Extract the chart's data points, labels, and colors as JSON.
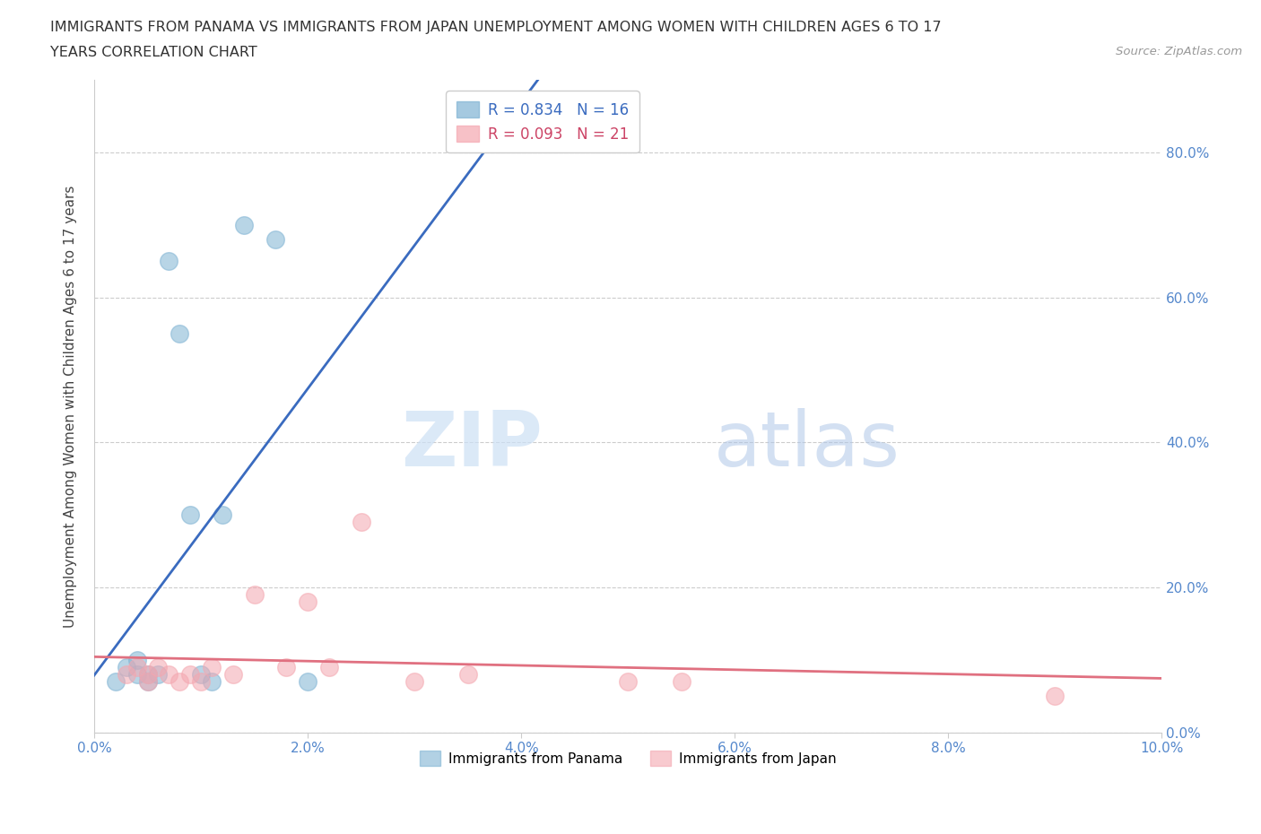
{
  "title_line1": "IMMIGRANTS FROM PANAMA VS IMMIGRANTS FROM JAPAN UNEMPLOYMENT AMONG WOMEN WITH CHILDREN AGES 6 TO 17",
  "title_line2": "YEARS CORRELATION CHART",
  "source": "Source: ZipAtlas.com",
  "ylabel": "Unemployment Among Women with Children Ages 6 to 17 years",
  "xlim": [
    0.0,
    0.1
  ],
  "ylim": [
    0.0,
    0.9
  ],
  "xticks": [
    0.0,
    0.02,
    0.04,
    0.06,
    0.08,
    0.1
  ],
  "yticks": [
    0.0,
    0.2,
    0.4,
    0.6,
    0.8
  ],
  "xtick_labels": [
    "0.0%",
    "2.0%",
    "4.0%",
    "6.0%",
    "8.0%",
    "10.0%"
  ],
  "ytick_labels": [
    "0.0%",
    "20.0%",
    "40.0%",
    "60.0%",
    "80.0%"
  ],
  "panama_color": "#7fb3d3",
  "japan_color": "#f4a7b0",
  "line_panama_color": "#3a6bbf",
  "line_japan_color": "#e07080",
  "legend_panama_label": "Immigrants from Panama",
  "legend_japan_label": "Immigrants from Japan",
  "R_panama": 0.834,
  "N_panama": 16,
  "R_japan": 0.093,
  "N_japan": 21,
  "watermark_zip": "ZIP",
  "watermark_atlas": "atlas",
  "background_color": "#ffffff",
  "panama_scatter_x": [
    0.002,
    0.003,
    0.004,
    0.004,
    0.005,
    0.005,
    0.006,
    0.007,
    0.008,
    0.009,
    0.01,
    0.011,
    0.012,
    0.014,
    0.017,
    0.02
  ],
  "panama_scatter_y": [
    0.07,
    0.09,
    0.08,
    0.1,
    0.07,
    0.08,
    0.08,
    0.65,
    0.55,
    0.3,
    0.08,
    0.07,
    0.3,
    0.7,
    0.68,
    0.07
  ],
  "japan_scatter_x": [
    0.003,
    0.004,
    0.005,
    0.005,
    0.006,
    0.007,
    0.008,
    0.009,
    0.01,
    0.011,
    0.013,
    0.015,
    0.018,
    0.02,
    0.022,
    0.025,
    0.03,
    0.035,
    0.05,
    0.055,
    0.09
  ],
  "japan_scatter_y": [
    0.08,
    0.09,
    0.07,
    0.08,
    0.09,
    0.08,
    0.07,
    0.08,
    0.07,
    0.09,
    0.08,
    0.19,
    0.09,
    0.18,
    0.09,
    0.29,
    0.07,
    0.08,
    0.07,
    0.07,
    0.05
  ]
}
